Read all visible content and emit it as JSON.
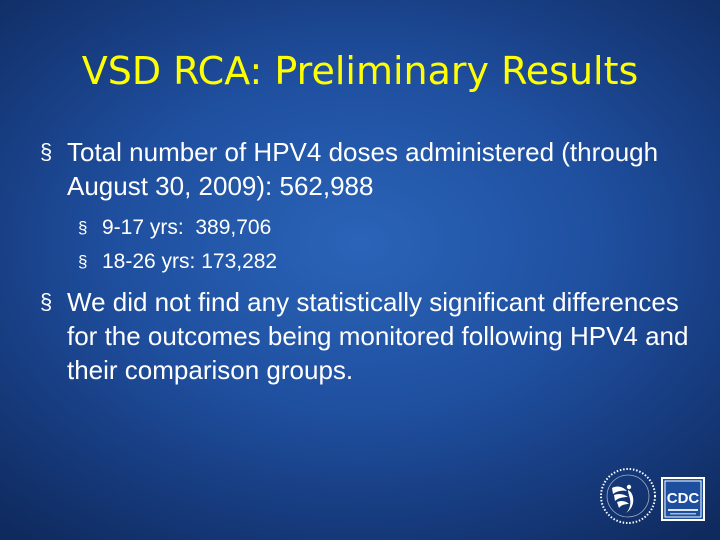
{
  "slide": {
    "title": "VSD RCA: Preliminary Results",
    "bullets": [
      {
        "marker": "§",
        "text": "Total number of HPV4 doses administered (through August 30, 2009): 562,988",
        "sub": [
          {
            "marker": "§",
            "text": "9-17 yrs:  389,706"
          },
          {
            "marker": "§",
            "text": "18-26 yrs: 173,282"
          }
        ]
      },
      {
        "marker": "§",
        "text": "We did not find any statistically significant differences for the outcomes being monitored following HPV4 and their comparison groups."
      }
    ]
  },
  "logos": {
    "cdc_text": "CDC",
    "hhs_icon": "hhs-eagle-seal-icon"
  },
  "colors": {
    "title": "#ffff00",
    "text": "#ffffff",
    "background": "#1f4f9f"
  }
}
